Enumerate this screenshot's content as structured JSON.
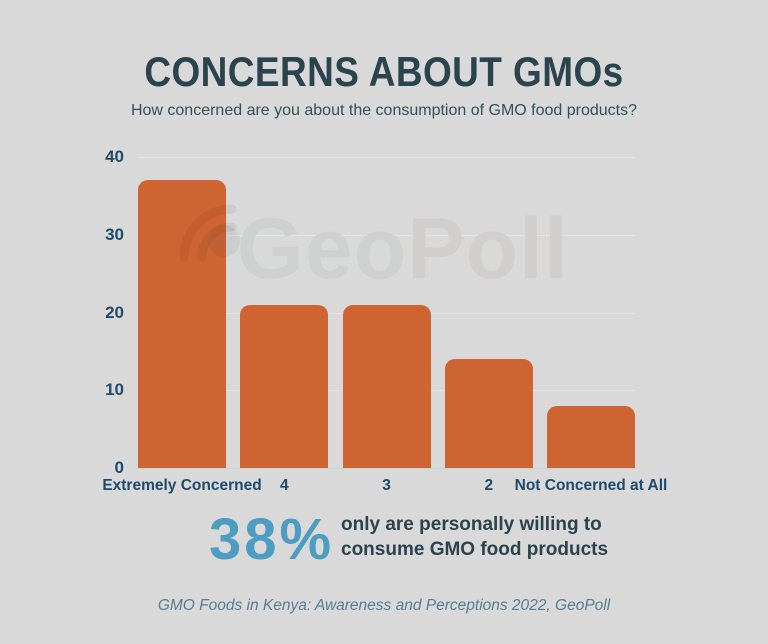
{
  "header": {
    "title": "CONCERNS ABOUT GMOs",
    "subtitle": "How concerned are you about the consumption of GMO food products?"
  },
  "chart_data": {
    "type": "bar",
    "categories": [
      "Extremely Concerned",
      "4",
      "3",
      "2",
      "Not Concerned at All"
    ],
    "values": [
      37,
      21,
      21,
      14,
      8
    ],
    "title": "CONCERNS ABOUT GMOs",
    "xlabel": "",
    "ylabel": "",
    "ylim": [
      0,
      40
    ],
    "yticks": [
      0,
      10,
      20,
      30,
      40
    ],
    "grid": true,
    "legend": false,
    "bar_color": "#cd6431"
  },
  "watermark": {
    "text": "GeoPoll",
    "geo": "Geo",
    "poll": "Poll",
    "icon": "geopoll-signal-icon"
  },
  "highlight": {
    "stat": "38%",
    "line1": "only are personally willing to",
    "line2": "consume GMO food products"
  },
  "footer": {
    "source": "GMO Foods in Kenya: Awareness and Perceptions 2022, GeoPoll"
  },
  "colors": {
    "bg": "#d9d9d9",
    "bar": "#cd6431",
    "title": "#2b434d",
    "subtitle": "#33505a",
    "axis": "#1d4a6d",
    "grid": "#e3e3e3",
    "axisline": "#c9d3da",
    "stat": "#4c9dc1",
    "source": "#567c94",
    "watermark_geo": "#cdd2d0",
    "watermark_poll": "#d1cfcc"
  }
}
